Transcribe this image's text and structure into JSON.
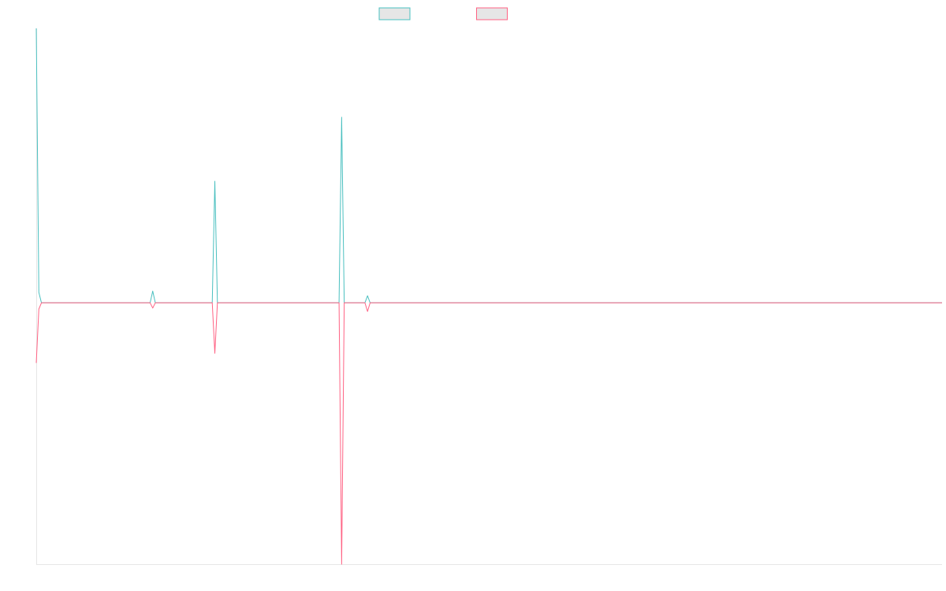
{
  "chart_data": {
    "type": "line",
    "x": [
      0,
      1,
      2,
      44,
      45,
      46,
      68,
      69,
      70,
      117,
      118,
      119,
      127,
      128,
      129,
      350
    ],
    "xlim": [
      0,
      350
    ],
    "ylim": [
      -100,
      105
    ],
    "series": [
      {
        "color": "#4bc0c0",
        "values": [
          105,
          4,
          0,
          0,
          4.5,
          0,
          0,
          46.5,
          0,
          0,
          71,
          0,
          0,
          2.7,
          0,
          0
        ]
      },
      {
        "color": "#ff6384",
        "values": [
          -23,
          -2.4,
          0,
          0,
          -2,
          0,
          0,
          -19.3,
          0,
          0,
          -100,
          0,
          0,
          -3.3,
          0,
          0
        ]
      }
    ]
  }
}
